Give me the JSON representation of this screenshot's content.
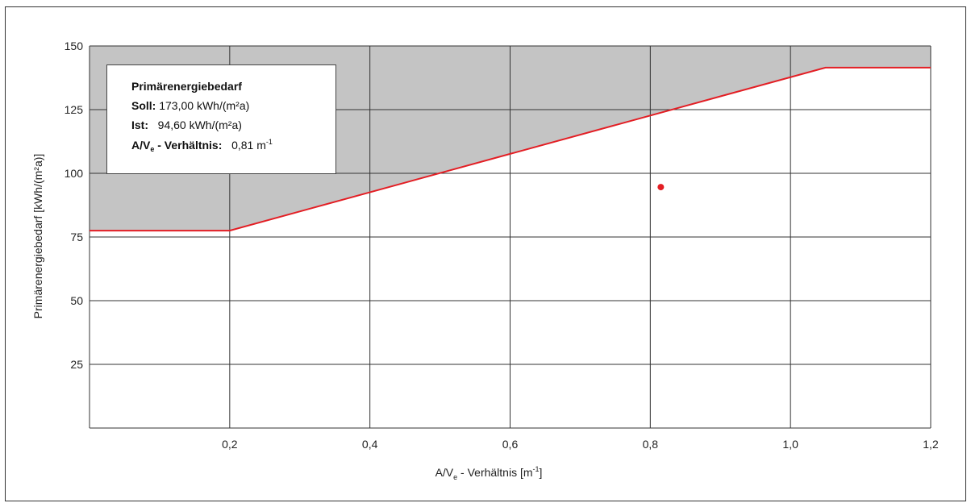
{
  "chart_data": {
    "type": "line",
    "xlabel_main": "A/V",
    "xlabel_sub": "e",
    "xlabel_rest": " - Verhältnis [m",
    "xlabel_sup": "-1",
    "xlabel_close": "]",
    "ylabel": "Primärenergiebedarf  [kWh/(m²a)]",
    "xlim": [
      0,
      1.2
    ],
    "ylim": [
      0,
      150
    ],
    "x_ticks": [
      0.2,
      0.4,
      0.6,
      0.8,
      1.0,
      1.2
    ],
    "x_tick_labels": [
      "0,2",
      "0,4",
      "0,6",
      "0,8",
      "1,0",
      "1,2"
    ],
    "y_ticks": [
      25,
      50,
      75,
      100,
      125,
      150
    ],
    "y_tick_labels": [
      "25",
      "50",
      "75",
      "100",
      "125",
      "150"
    ],
    "grid": true,
    "series": [
      {
        "x": [
          0.0,
          0.2,
          1.05,
          1.2
        ],
        "y": [
          77.5,
          77.5,
          141.5,
          141.5
        ],
        "color": "#e31e24"
      }
    ],
    "shaded_region": {
      "above_series": 0,
      "color": "#c4c4c4"
    },
    "points": [
      {
        "x": 0.815,
        "y": 94.6,
        "color": "#e31e24"
      }
    ]
  },
  "info": {
    "title": "Primärenergiebedarf",
    "soll_label": "Soll:",
    "soll_value": "173,00 kWh/(m²a)",
    "ist_label": "Ist:",
    "ist_value": "94,60 kWh/(m²a)",
    "ratio_label_main": "A/V",
    "ratio_label_sub": "e",
    "ratio_label_rest": " - Verhältnis:",
    "ratio_value": "0,81 m",
    "ratio_value_sup": "-1"
  }
}
